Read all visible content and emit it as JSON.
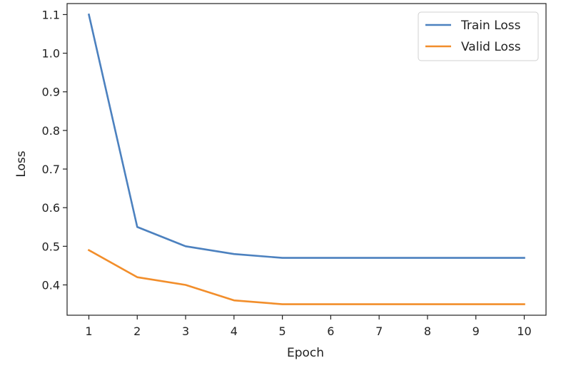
{
  "chart_data": {
    "type": "line",
    "title": "",
    "xlabel": "Epoch",
    "ylabel": "Loss",
    "x": [
      1,
      2,
      3,
      4,
      5,
      6,
      7,
      8,
      9,
      10
    ],
    "series": [
      {
        "name": "Train Loss",
        "color": "#4c81bf",
        "values": [
          1.1,
          0.55,
          0.5,
          0.48,
          0.47,
          0.47,
          0.47,
          0.47,
          0.47,
          0.47
        ]
      },
      {
        "name": "Valid Loss",
        "color": "#f28e2b",
        "values": [
          0.49,
          0.42,
          0.4,
          0.36,
          0.35,
          0.35,
          0.35,
          0.35,
          0.35,
          0.35
        ]
      }
    ],
    "xlim": [
      0.55,
      10.45
    ],
    "ylim": [
      0.3215,
      1.1285
    ],
    "xticks": [
      1,
      2,
      3,
      4,
      5,
      6,
      7,
      8,
      9,
      10
    ],
    "xtick_labels": [
      "1",
      "2",
      "3",
      "4",
      "5",
      "6",
      "7",
      "8",
      "9",
      "10"
    ],
    "yticks": [
      0.4,
      0.5,
      0.6,
      0.7,
      0.8,
      0.9,
      1.0,
      1.1
    ],
    "ytick_labels": [
      "0.4",
      "0.5",
      "0.6",
      "0.7",
      "0.8",
      "0.9",
      "1.0",
      "1.1"
    ],
    "grid": false,
    "legend_position": "top-right"
  }
}
